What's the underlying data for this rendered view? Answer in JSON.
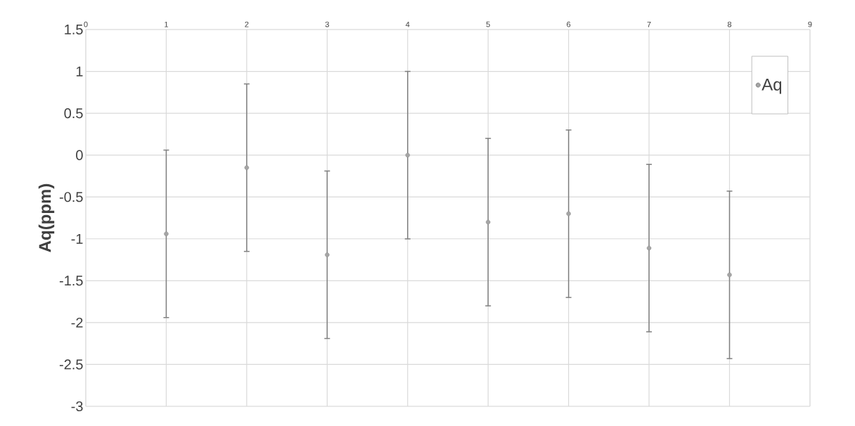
{
  "chart_data": {
    "type": "scatter",
    "ylabel": "Aq(ppm)",
    "x": [
      1,
      2,
      3,
      4,
      5,
      6,
      7,
      8
    ],
    "series": [
      {
        "name": "Aq",
        "color": "#a5a5a5",
        "values": [
          -0.94,
          -0.15,
          -1.19,
          0.0,
          -0.8,
          -0.7,
          -1.11,
          -1.43
        ],
        "errors": [
          1,
          1,
          1,
          1,
          1,
          1,
          1,
          1
        ]
      }
    ],
    "xlim": [
      0,
      9
    ],
    "xticks": [
      0,
      1,
      2,
      3,
      4,
      5,
      6,
      7,
      8,
      9
    ],
    "ylim": [
      -3,
      1.5
    ],
    "yticks": [
      -3,
      -2.5,
      -2,
      -1.5,
      -1,
      -0.5,
      0,
      0.5,
      1,
      1.5
    ],
    "grid": true,
    "legend": "top right",
    "marker": "circle"
  }
}
